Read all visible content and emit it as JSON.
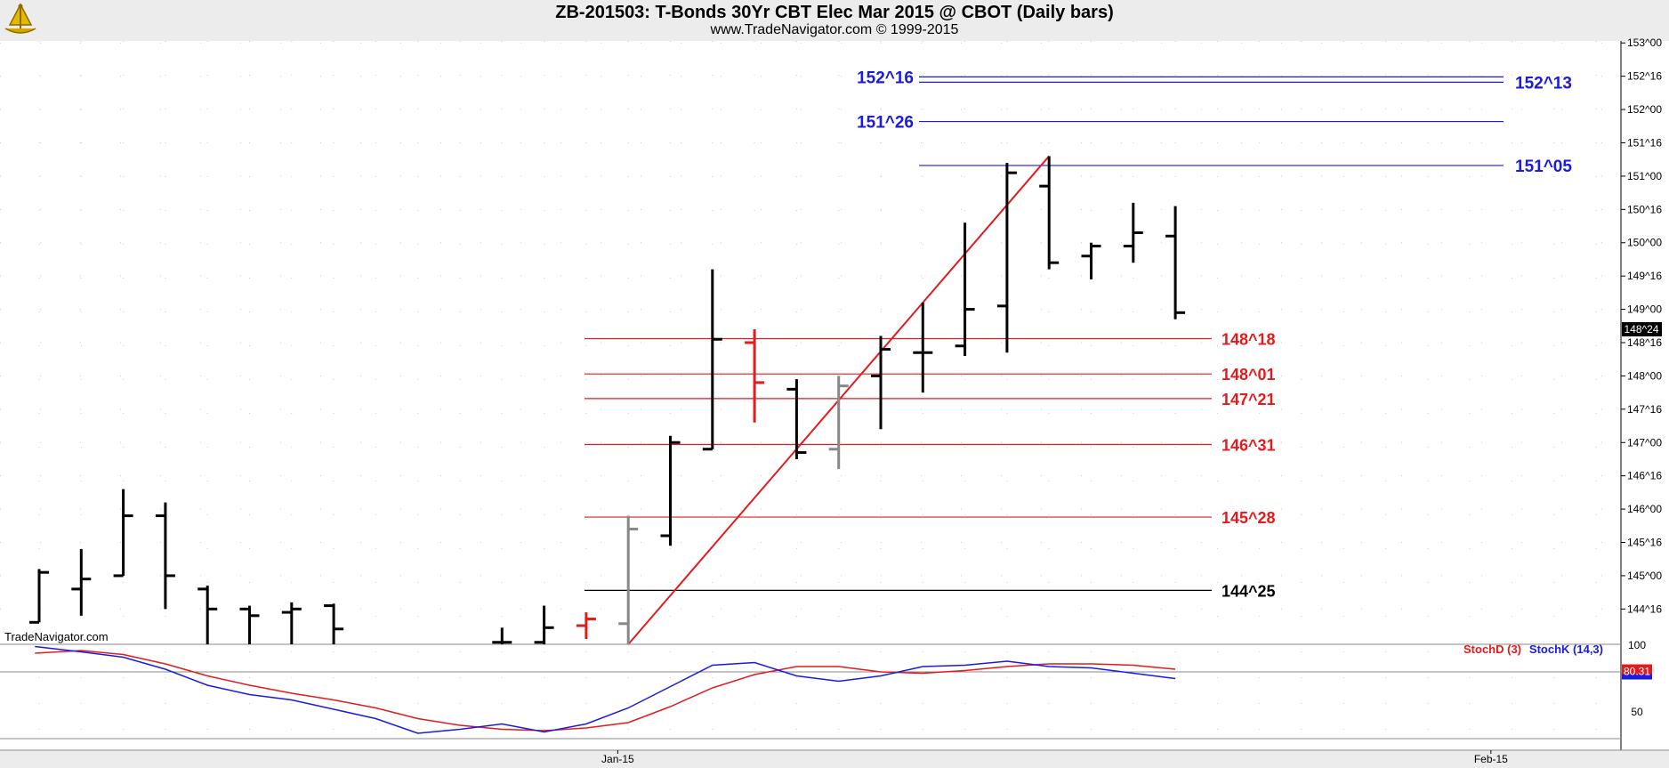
{
  "header": {
    "title": "ZB-201503:  T-Bonds 30Yr CBT Elec Mar 2015 @ CBOT  (Daily bars)",
    "subtitle": "www.TradeNavigator.com © 1999-2015"
  },
  "watermark": "TradeNavigator.com",
  "chart_data": [
    {
      "type": "ohlc",
      "title": "ZB-201503:  T-Bonds 30Yr CBT Elec Mar 2015 @ CBOT  (Daily bars)",
      "y_ticks": [
        "153^00",
        "152^16",
        "152^00",
        "151^16",
        "151^00",
        "150^16",
        "150^00",
        "149^16",
        "149^00",
        "148^16",
        "148^00",
        "147^16",
        "147^00",
        "146^16",
        "146^00",
        "145^16",
        "145^00",
        "144^16"
      ],
      "y_tick_values": [
        153.0,
        152.5,
        152.0,
        151.5,
        151.0,
        150.5,
        150.0,
        149.5,
        149.0,
        148.5,
        148.0,
        147.5,
        147.0,
        146.5,
        146.0,
        145.5,
        145.0,
        144.5
      ],
      "ylim": [
        143.97,
        153.03
      ],
      "x_labels": [
        {
          "label": "Jan-15",
          "bar": 13.75
        },
        {
          "label": "Feb-15",
          "bar": 34.5
        }
      ],
      "last_price": "148^24",
      "bars": [
        {
          "x": 0,
          "o": 144.3,
          "h": 145.1,
          "l": 144.3,
          "c": 145.05,
          "color": "#000000"
        },
        {
          "x": 1,
          "o": 144.8,
          "h": 145.4,
          "l": 144.4,
          "c": 144.95,
          "color": "#000000"
        },
        {
          "x": 2,
          "o": 145.0,
          "h": 146.3,
          "l": 145.0,
          "c": 145.9,
          "color": "#000000"
        },
        {
          "x": 3,
          "o": 145.9,
          "h": 146.1,
          "l": 144.5,
          "c": 145.0,
          "color": "#000000"
        },
        {
          "x": 4,
          "o": 144.8,
          "h": 144.85,
          "l": 143.97,
          "c": 144.5,
          "color": "#000000"
        },
        {
          "x": 5,
          "o": 144.5,
          "h": 144.55,
          "l": 143.97,
          "c": 144.4,
          "color": "#000000"
        },
        {
          "x": 6,
          "o": 144.45,
          "h": 144.6,
          "l": 143.97,
          "c": 144.5,
          "color": "#000000"
        },
        {
          "x": 7,
          "o": 144.55,
          "h": 144.58,
          "l": 143.97,
          "c": 144.2,
          "color": "#000000"
        },
        {
          "x": 11,
          "o": 144.0,
          "h": 144.22,
          "l": 143.97,
          "c": 144.0,
          "color": "#000000"
        },
        {
          "x": 12,
          "o": 144.0,
          "h": 144.55,
          "l": 143.97,
          "c": 144.22,
          "color": "#000000"
        },
        {
          "x": 13,
          "o": 144.25,
          "h": 144.45,
          "l": 144.05,
          "c": 144.35,
          "color": "#e41a1c"
        },
        {
          "x": 14,
          "o": 144.28,
          "h": 145.9,
          "l": 143.97,
          "c": 145.7,
          "color": "#888888"
        },
        {
          "x": 15,
          "o": 145.6,
          "h": 147.1,
          "l": 145.45,
          "c": 147.0,
          "color": "#000000"
        },
        {
          "x": 16,
          "o": 146.9,
          "h": 149.6,
          "l": 146.9,
          "c": 148.55,
          "color": "#000000"
        },
        {
          "x": 17,
          "o": 148.5,
          "h": 148.7,
          "l": 147.3,
          "c": 147.9,
          "color": "#e41a1c"
        },
        {
          "x": 18,
          "o": 147.8,
          "h": 147.95,
          "l": 146.75,
          "c": 146.85,
          "color": "#000000"
        },
        {
          "x": 19,
          "o": 146.9,
          "h": 148.0,
          "l": 146.6,
          "c": 147.85,
          "color": "#888888"
        },
        {
          "x": 20,
          "o": 148.0,
          "h": 148.6,
          "l": 147.2,
          "c": 148.4,
          "color": "#000000"
        },
        {
          "x": 21,
          "o": 148.35,
          "h": 149.1,
          "l": 147.75,
          "c": 148.35,
          "color": "#000000"
        },
        {
          "x": 22,
          "o": 148.45,
          "h": 150.3,
          "l": 148.3,
          "c": 149.0,
          "color": "#000000"
        },
        {
          "x": 23,
          "o": 149.05,
          "h": 151.2,
          "l": 148.35,
          "c": 151.05,
          "color": "#000000"
        },
        {
          "x": 24,
          "o": 150.85,
          "h": 151.3,
          "l": 149.6,
          "c": 149.7,
          "color": "#000000"
        },
        {
          "x": 25,
          "o": 149.8,
          "h": 150.0,
          "l": 149.45,
          "c": 149.95,
          "color": "#000000"
        },
        {
          "x": 26,
          "o": 149.95,
          "h": 150.6,
          "l": 149.7,
          "c": 150.15,
          "color": "#000000"
        },
        {
          "x": 27,
          "o": 150.1,
          "h": 150.55,
          "l": 148.85,
          "c": 148.95,
          "color": "#000000"
        }
      ],
      "levels": [
        {
          "label": "152^16",
          "value": 152.49,
          "color": "#1a1ae6",
          "side": "left"
        },
        {
          "label": "152^13",
          "value": 152.41,
          "color": "#1a1ae6",
          "side": "right"
        },
        {
          "label": "151^26",
          "value": 151.82,
          "color": "#1a1ae6",
          "side": "left"
        },
        {
          "label": "151^05",
          "value": 151.16,
          "color": "#1a1ae6",
          "side": "right"
        },
        {
          "label": "148^18",
          "value": 148.56,
          "color": "#e41a1c",
          "side": "right"
        },
        {
          "label": "148^01",
          "value": 148.03,
          "color": "#e41a1c",
          "side": "right"
        },
        {
          "label": "147^21",
          "value": 147.66,
          "color": "#e41a1c",
          "side": "right"
        },
        {
          "label": "146^31",
          "value": 146.97,
          "color": "#e41a1c",
          "side": "right"
        },
        {
          "label": "145^28",
          "value": 145.88,
          "color": "#e41a1c",
          "side": "right"
        },
        {
          "label": "144^25",
          "value": 144.78,
          "color": "#000000",
          "side": "right"
        }
      ],
      "trendline": {
        "x1": 14.0,
        "y1": 143.97,
        "x2": 24.0,
        "y2": 151.3,
        "color": "#e41a1c"
      }
    },
    {
      "type": "line",
      "ylim": [
        30,
        100
      ],
      "y_ticks": [
        "100",
        "50"
      ],
      "y_tick_values": [
        100,
        50
      ],
      "reference_line": 80,
      "last_value": "80.31",
      "series": [
        {
          "name": "StochD (3)",
          "color": "#e41a1c",
          "x": [
            -0.1,
            1,
            2,
            3,
            4,
            5,
            6,
            7,
            8,
            9,
            10,
            11,
            12,
            13,
            14,
            15,
            16,
            17,
            18,
            19,
            20,
            21,
            22,
            23,
            24,
            25,
            26,
            27
          ],
          "values": [
            94,
            96,
            93,
            86,
            77,
            70,
            64,
            59,
            53,
            45,
            40,
            37,
            36,
            38,
            42,
            54,
            68,
            78,
            84,
            84,
            80,
            79,
            81,
            84,
            86,
            86,
            85,
            82
          ]
        },
        {
          "name": "StochK (14,3)",
          "color": "#1a1ae6",
          "x": [
            -0.1,
            1,
            2,
            3,
            4,
            5,
            6,
            7,
            8,
            9,
            10,
            11,
            12,
            13,
            14,
            15,
            16,
            17,
            18,
            19,
            20,
            21,
            22,
            23,
            24,
            25,
            26,
            27
          ],
          "values": [
            99,
            95,
            91,
            82,
            70,
            63,
            59,
            52,
            45,
            34,
            37,
            41,
            35,
            41,
            53,
            69,
            85,
            87,
            77,
            73,
            77,
            84,
            85,
            88,
            84,
            83,
            79,
            75
          ]
        }
      ]
    }
  ]
}
